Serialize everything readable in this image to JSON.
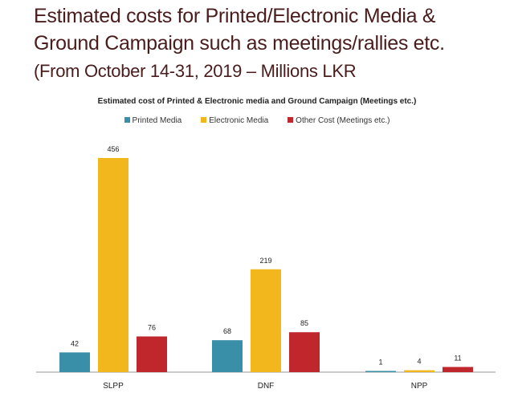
{
  "slide": {
    "title_line1": "Estimated costs for Printed/Electronic Media &",
    "title_line2": "Ground Campaign such as meetings/rallies etc.",
    "title_line3": "(From October 14-31, 2019 – Millions LKR"
  },
  "chart_data": {
    "type": "bar",
    "title": "Estimated cost of Printed & Electronic media and Ground Campaign (Meetings etc.)",
    "categories": [
      "SLPP",
      "DNF",
      "NPP"
    ],
    "series": [
      {
        "name": "Printed Media",
        "color": "#3a8fa8",
        "values": [
          42,
          68,
          1
        ]
      },
      {
        "name": "Electronic Media",
        "color": "#f2b71c",
        "values": [
          456,
          219,
          4
        ]
      },
      {
        "name": "Other Cost (Meetings etc.)",
        "color": "#c0272d",
        "values": [
          76,
          85,
          11
        ]
      }
    ],
    "ylim": [
      0,
      456
    ],
    "legend": "top",
    "grid": false
  }
}
